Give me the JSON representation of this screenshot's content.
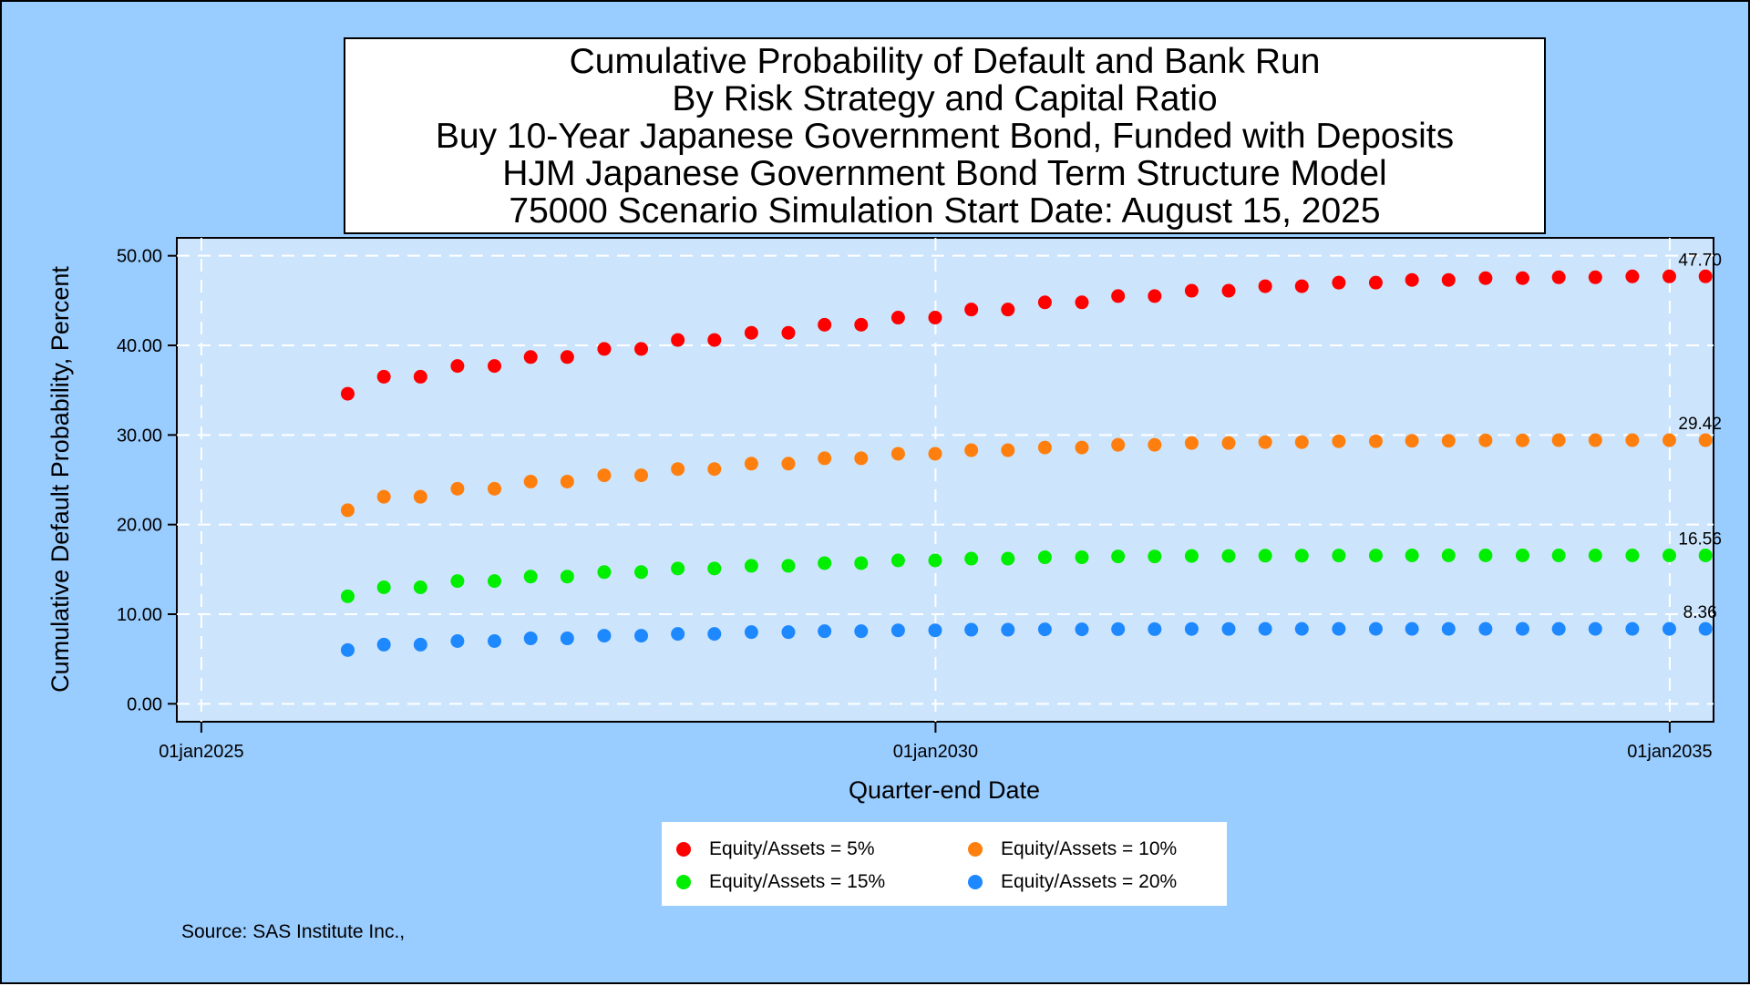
{
  "chart_data": {
    "type": "scatter",
    "title": [
      "Cumulative Probability of Default and Bank Run",
      "By Risk Strategy and Capital Ratio",
      "Buy 10-Year Japanese Government Bond, Funded with Deposits",
      "HJM Japanese Government Bond Term Structure Model",
      "75000 Scenario Simulation Start Date: August 15, 2025"
    ],
    "xlabel": "Quarter-end Date",
    "ylabel": "Cumulative Default Probability, Percent",
    "x_tick_labels": [
      "01jan2025",
      "01jan2030",
      "01jan2035"
    ],
    "y_tick_labels": [
      "0.00",
      "10.00",
      "20.00",
      "30.00",
      "40.00",
      "50.00"
    ],
    "y_ticks": [
      0,
      10,
      20,
      30,
      40,
      50
    ],
    "xlim": [
      "2024-11-01",
      "2035-04-20"
    ],
    "ylim": [
      -2,
      52
    ],
    "grid": true,
    "x": [
      "2025-12-31",
      "2026-03-31",
      "2026-06-30",
      "2026-09-30",
      "2026-12-31",
      "2027-03-31",
      "2027-06-30",
      "2027-09-30",
      "2027-12-31",
      "2028-03-31",
      "2028-06-30",
      "2028-09-30",
      "2028-12-31",
      "2029-03-31",
      "2029-06-30",
      "2029-09-30",
      "2029-12-31",
      "2030-03-31",
      "2030-06-30",
      "2030-09-30",
      "2030-12-31",
      "2031-03-31",
      "2031-06-30",
      "2031-09-30",
      "2031-12-31",
      "2032-03-31",
      "2032-06-30",
      "2032-09-30",
      "2032-12-31",
      "2033-03-31",
      "2033-06-30",
      "2033-09-30",
      "2033-12-31",
      "2034-03-31",
      "2034-06-30",
      "2034-09-30",
      "2034-12-31",
      "2035-03-31"
    ],
    "series": [
      {
        "name": "Equity/Assets = 5%",
        "color": "#ff0000",
        "end_label": "47.70",
        "values": [
          34.6,
          36.5,
          36.5,
          37.7,
          37.7,
          38.7,
          38.7,
          39.6,
          39.6,
          40.6,
          40.6,
          41.4,
          41.4,
          42.3,
          42.3,
          43.1,
          43.1,
          44.0,
          44.0,
          44.8,
          44.8,
          45.5,
          45.5,
          46.1,
          46.1,
          46.6,
          46.6,
          47.0,
          47.0,
          47.3,
          47.3,
          47.5,
          47.5,
          47.6,
          47.6,
          47.7,
          47.7,
          47.7
        ]
      },
      {
        "name": "Equity/Assets = 10%",
        "color": "#ff7f0e",
        "end_label": "29.42",
        "values": [
          21.6,
          23.1,
          23.1,
          24.0,
          24.0,
          24.8,
          24.8,
          25.5,
          25.5,
          26.2,
          26.2,
          26.8,
          26.8,
          27.4,
          27.4,
          27.9,
          27.9,
          28.3,
          28.3,
          28.6,
          28.6,
          28.9,
          28.9,
          29.1,
          29.1,
          29.2,
          29.2,
          29.3,
          29.3,
          29.35,
          29.35,
          29.4,
          29.4,
          29.42,
          29.42,
          29.42,
          29.42,
          29.42
        ]
      },
      {
        "name": "Equity/Assets = 15%",
        "color": "#00ee00",
        "end_label": "16.56",
        "values": [
          12.0,
          13.0,
          13.0,
          13.7,
          13.7,
          14.2,
          14.2,
          14.7,
          14.7,
          15.1,
          15.1,
          15.4,
          15.4,
          15.7,
          15.7,
          16.0,
          16.0,
          16.2,
          16.2,
          16.35,
          16.35,
          16.45,
          16.45,
          16.5,
          16.5,
          16.53,
          16.53,
          16.55,
          16.55,
          16.56,
          16.56,
          16.56,
          16.56,
          16.56,
          16.56,
          16.56,
          16.56,
          16.56
        ]
      },
      {
        "name": "Equity/Assets = 20%",
        "color": "#1e88ff",
        "end_label": "8.36",
        "values": [
          6.0,
          6.6,
          6.6,
          7.0,
          7.0,
          7.3,
          7.3,
          7.6,
          7.6,
          7.8,
          7.8,
          8.0,
          8.0,
          8.1,
          8.1,
          8.2,
          8.2,
          8.27,
          8.27,
          8.31,
          8.31,
          8.33,
          8.33,
          8.35,
          8.35,
          8.36,
          8.36,
          8.36,
          8.36,
          8.36,
          8.36,
          8.36,
          8.36,
          8.36,
          8.36,
          8.36,
          8.36,
          8.36
        ]
      }
    ],
    "legend_position": "bottom"
  },
  "source_note": "Source: SAS Institute Inc.,"
}
